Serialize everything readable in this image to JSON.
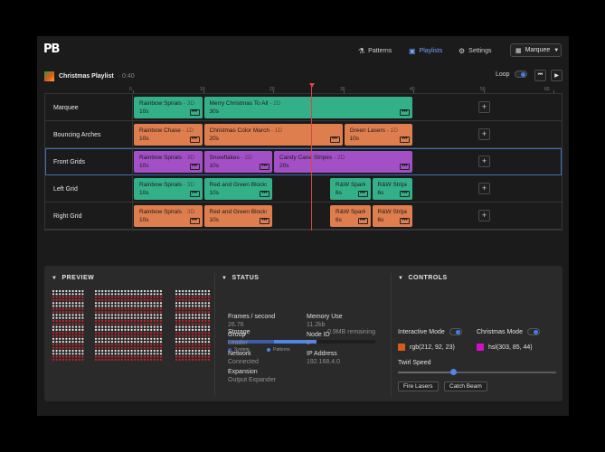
{
  "nav": {
    "logo": "PB",
    "patterns": "Patterns",
    "playlists": "Playlists",
    "settings": "Settings",
    "device": "Marquee"
  },
  "playlist": {
    "title": "Christmas Playlist",
    "duration": "· 0:40",
    "loop_label": "Loop",
    "loop_on": true
  },
  "ruler": {
    "ticks": [
      "0",
      "10",
      "20",
      "30",
      "40",
      "50",
      "60"
    ],
    "max": 60
  },
  "playhead_seconds": 25.5,
  "tracks": [
    {
      "name": "Marquee",
      "clips": [
        {
          "name": "Rainbow Spirals",
          "kind": "3D",
          "dur": "10s",
          "color": "green",
          "start": 0,
          "len": 10
        },
        {
          "name": "Merry Christmas To All",
          "kind": "2D",
          "dur": "30s",
          "color": "green",
          "start": 10,
          "len": 30
        }
      ]
    },
    {
      "name": "Bouncing Arches",
      "clips": [
        {
          "name": "Rainbow Chase",
          "kind": "1D",
          "dur": "10s",
          "color": "orange",
          "start": 0,
          "len": 10
        },
        {
          "name": "Christmas Color March",
          "kind": "1D",
          "dur": "20s",
          "color": "orange",
          "start": 10,
          "len": 20
        },
        {
          "name": "Green Lasers",
          "kind": "1D",
          "dur": "10s",
          "color": "orange",
          "start": 30,
          "len": 10
        }
      ]
    },
    {
      "name": "Front Grids",
      "selected": true,
      "clips": [
        {
          "name": "Rainbow Spirals",
          "kind": "3D",
          "dur": "10s",
          "color": "purple",
          "start": 0,
          "len": 10
        },
        {
          "name": "Snowflakes",
          "kind": "2D",
          "dur": "10s",
          "color": "purple",
          "start": 10,
          "len": 10
        },
        {
          "name": "Candy Cane Stripes",
          "kind": "2D",
          "dur": "20s",
          "color": "purple",
          "start": 20,
          "len": 20
        }
      ]
    },
    {
      "name": "Left Grid",
      "clips": [
        {
          "name": "Rainbow Spirals",
          "kind": "3D",
          "dur": "10s",
          "color": "green",
          "start": 0,
          "len": 10
        },
        {
          "name": "Red and Green Blocks",
          "kind": "2D",
          "dur": "10s",
          "color": "green",
          "start": 10,
          "len": 10
        },
        {
          "name": "R&W Sparkl...",
          "kind": "",
          "dur": "6s",
          "color": "green",
          "start": 28,
          "len": 6
        },
        {
          "name": "R&W Stripes...",
          "kind": "",
          "dur": "6s",
          "color": "green",
          "start": 34,
          "len": 6
        }
      ]
    },
    {
      "name": "Right Grid",
      "clips": [
        {
          "name": "Rainbow Spirals",
          "kind": "3D",
          "dur": "10s",
          "color": "orange",
          "start": 0,
          "len": 10
        },
        {
          "name": "Red and Green Blocks",
          "kind": "2D",
          "dur": "10s",
          "color": "orange",
          "start": 10,
          "len": 10
        },
        {
          "name": "R&W Sparkl...",
          "kind": "",
          "dur": "6s",
          "color": "orange",
          "start": 28,
          "len": 6
        },
        {
          "name": "R&W Stripes...",
          "kind": "",
          "dur": "6s",
          "color": "orange",
          "start": 34,
          "len": 6
        }
      ]
    }
  ],
  "colors": {
    "green": "#34b089",
    "orange": "#de7d4e",
    "purple": "#a34fc6",
    "accent": "#4f86e8",
    "playhead": "#d9473f"
  },
  "preview": {
    "title": "PREVIEW"
  },
  "status": {
    "title": "STATUS",
    "storage_label": "Storage",
    "storage_remaining": "0.9MB remaining",
    "storage_system_fraction": 0.31,
    "storage_patterns_fraction": 0.6,
    "legend_system": "System",
    "legend_patterns": "Patterns",
    "fields": [
      {
        "label": "Frames / second",
        "value": "26.76"
      },
      {
        "label": "Memory Use",
        "value": "11.2kb"
      },
      {
        "label": "Group",
        "value": "Leader"
      },
      {
        "label": "Node ID",
        "value": "0"
      },
      {
        "label": "Network",
        "value": "Connected"
      },
      {
        "label": "IP Address",
        "value": "192.168.4.0"
      },
      {
        "label": "Expansion",
        "value": "Output Expander"
      }
    ]
  },
  "controls": {
    "title": "CONTROLS",
    "interactive_mode": "Interactive Mode",
    "christmas_mode": "Christmas Mode",
    "color1": "rgb(212, 92, 23)",
    "color1_hex": "#d45c17",
    "color2": "hsl(303, 85, 44)",
    "color2_hex": "#d010c8",
    "twirl_label": "Twirl Speed",
    "twirl_value": 0.35,
    "fire_lasers": "Fire Lasers",
    "catch_beam": "Catch Beam"
  }
}
